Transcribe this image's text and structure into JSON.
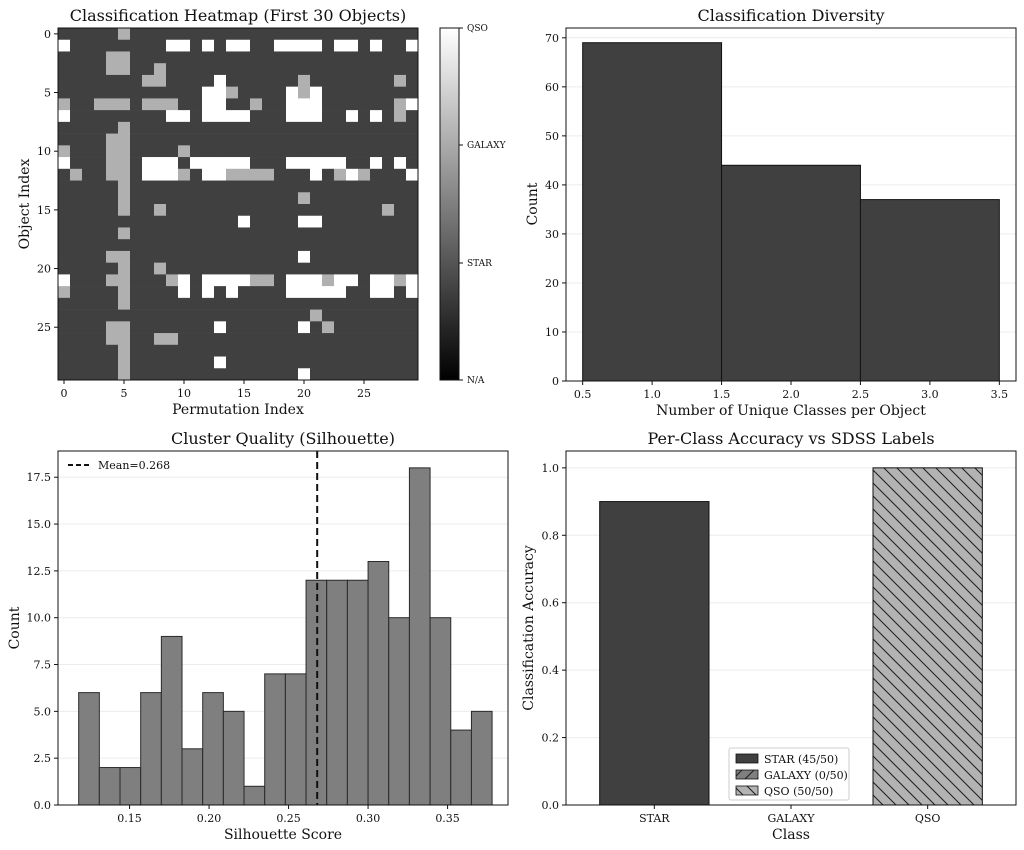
{
  "chart_data": [
    {
      "type": "heatmap",
      "title": "Classification Heatmap (First 30 Objects)",
      "xlabel": "Permutation Index",
      "ylabel": "Object Index",
      "rows": 30,
      "cols": 30,
      "x_ticks": [
        0,
        5,
        10,
        15,
        20,
        25
      ],
      "y_ticks": [
        0,
        5,
        10,
        15,
        20,
        25
      ],
      "colorbar_labels": [
        "QSO",
        "GALAXY",
        "STAR",
        "N/A"
      ],
      "classes": [
        "N/A",
        "STAR",
        "GALAXY",
        "QSO"
      ],
      "default_class": "STAR",
      "galaxy_cells": [
        [
          0,
          5
        ],
        [
          2,
          4
        ],
        [
          2,
          5
        ],
        [
          3,
          4
        ],
        [
          3,
          5
        ],
        [
          3,
          8
        ],
        [
          4,
          7
        ],
        [
          4,
          8
        ],
        [
          4,
          20
        ],
        [
          4,
          28
        ],
        [
          5,
          14
        ],
        [
          5,
          20
        ],
        [
          6,
          0
        ],
        [
          6,
          3
        ],
        [
          6,
          4
        ],
        [
          6,
          5
        ],
        [
          6,
          7
        ],
        [
          6,
          8
        ],
        [
          6,
          9
        ],
        [
          6,
          16
        ],
        [
          6,
          28
        ],
        [
          7,
          28
        ],
        [
          8,
          5
        ],
        [
          9,
          4
        ],
        [
          9,
          5
        ],
        [
          10,
          0
        ],
        [
          10,
          4
        ],
        [
          10,
          5
        ],
        [
          10,
          10
        ],
        [
          11,
          4
        ],
        [
          11,
          5
        ],
        [
          11,
          20
        ],
        [
          12,
          1
        ],
        [
          12,
          4
        ],
        [
          12,
          5
        ],
        [
          12,
          10
        ],
        [
          12,
          14
        ],
        [
          12,
          15
        ],
        [
          12,
          16
        ],
        [
          12,
          17
        ],
        [
          12,
          23
        ],
        [
          12,
          25
        ],
        [
          13,
          5
        ],
        [
          14,
          5
        ],
        [
          14,
          20
        ],
        [
          15,
          5
        ],
        [
          15,
          8
        ],
        [
          15,
          27
        ],
        [
          17,
          5
        ],
        [
          19,
          4
        ],
        [
          19,
          5
        ],
        [
          20,
          5
        ],
        [
          20,
          8
        ],
        [
          21,
          4
        ],
        [
          21,
          5
        ],
        [
          21,
          9
        ],
        [
          21,
          16
        ],
        [
          21,
          17
        ],
        [
          21,
          22
        ],
        [
          21,
          28
        ],
        [
          22,
          0
        ],
        [
          22,
          5
        ],
        [
          22,
          20
        ],
        [
          23,
          5
        ],
        [
          24,
          21
        ],
        [
          25,
          4
        ],
        [
          25,
          5
        ],
        [
          25,
          22
        ],
        [
          26,
          4
        ],
        [
          26,
          5
        ],
        [
          26,
          8
        ],
        [
          26,
          9
        ],
        [
          27,
          5
        ],
        [
          28,
          5
        ],
        [
          29,
          5
        ]
      ],
      "qso_cells": [
        [
          1,
          0
        ],
        [
          1,
          9
        ],
        [
          1,
          10
        ],
        [
          1,
          12
        ],
        [
          1,
          14
        ],
        [
          1,
          15
        ],
        [
          1,
          18
        ],
        [
          1,
          19
        ],
        [
          1,
          20
        ],
        [
          1,
          21
        ],
        [
          1,
          23
        ],
        [
          1,
          24
        ],
        [
          1,
          26
        ],
        [
          1,
          29
        ],
        [
          4,
          13
        ],
        [
          5,
          12
        ],
        [
          5,
          13
        ],
        [
          5,
          19
        ],
        [
          5,
          21
        ],
        [
          6,
          12
        ],
        [
          6,
          13
        ],
        [
          6,
          19
        ],
        [
          6,
          20
        ],
        [
          6,
          21
        ],
        [
          6,
          29
        ],
        [
          7,
          0
        ],
        [
          7,
          9
        ],
        [
          7,
          10
        ],
        [
          7,
          12
        ],
        [
          7,
          13
        ],
        [
          7,
          14
        ],
        [
          7,
          15
        ],
        [
          7,
          19
        ],
        [
          7,
          20
        ],
        [
          7,
          21
        ],
        [
          7,
          24
        ],
        [
          7,
          26
        ],
        [
          11,
          0
        ],
        [
          11,
          7
        ],
        [
          11,
          8
        ],
        [
          11,
          9
        ],
        [
          11,
          11
        ],
        [
          11,
          12
        ],
        [
          11,
          13
        ],
        [
          11,
          14
        ],
        [
          11,
          15
        ],
        [
          11,
          19
        ],
        [
          11,
          20
        ],
        [
          11,
          21
        ],
        [
          11,
          22
        ],
        [
          11,
          23
        ],
        [
          11,
          26
        ],
        [
          11,
          28
        ],
        [
          12,
          7
        ],
        [
          12,
          8
        ],
        [
          12,
          9
        ],
        [
          12,
          12
        ],
        [
          12,
          13
        ],
        [
          12,
          21
        ],
        [
          12,
          24
        ],
        [
          12,
          29
        ],
        [
          16,
          15
        ],
        [
          16,
          20
        ],
        [
          16,
          21
        ],
        [
          19,
          20
        ],
        [
          21,
          0
        ],
        [
          21,
          10
        ],
        [
          21,
          12
        ],
        [
          21,
          13
        ],
        [
          21,
          14
        ],
        [
          21,
          15
        ],
        [
          21,
          19
        ],
        [
          21,
          20
        ],
        [
          21,
          21
        ],
        [
          21,
          23
        ],
        [
          21,
          24
        ],
        [
          21,
          26
        ],
        [
          21,
          27
        ],
        [
          21,
          29
        ],
        [
          22,
          10
        ],
        [
          22,
          12
        ],
        [
          22,
          14
        ],
        [
          22,
          19
        ],
        [
          22,
          20
        ],
        [
          22,
          21
        ],
        [
          22,
          22
        ],
        [
          22,
          23
        ],
        [
          22,
          26
        ],
        [
          22,
          27
        ],
        [
          22,
          29
        ],
        [
          25,
          13
        ],
        [
          25,
          20
        ],
        [
          28,
          13
        ],
        [
          29,
          20
        ]
      ]
    },
    {
      "type": "bar",
      "title": "Classification Diversity",
      "xlabel": "Number of Unique Classes per Object",
      "ylabel": "Count",
      "categories": [
        1,
        2,
        3
      ],
      "values": [
        69,
        44,
        37
      ],
      "xlim": [
        0.38,
        3.62
      ],
      "ylim": [
        0,
        72
      ],
      "x_ticks": [
        "0.5",
        "1.0",
        "1.5",
        "2.0",
        "2.5",
        "3.0",
        "3.5"
      ],
      "y_ticks": [
        "0",
        "10",
        "20",
        "30",
        "40",
        "50",
        "60",
        "70"
      ],
      "color": "#404040"
    },
    {
      "type": "bar",
      "title": "Cluster Quality (Silhouette)",
      "xlabel": "Silhouette Score",
      "ylabel": "Count",
      "bin_start": 0.118,
      "bin_width": 0.013,
      "values": [
        6,
        2,
        2,
        6,
        9,
        3,
        6,
        5,
        1,
        7,
        7,
        12,
        12,
        12,
        13,
        10,
        18,
        10,
        4,
        5
      ],
      "mean": 0.268,
      "legend": "Mean=0.268",
      "legend_position": "top-left",
      "xlim": [
        0.105,
        0.388
      ],
      "ylim": [
        0,
        18.9
      ],
      "x_ticks": [
        "0.15",
        "0.20",
        "0.25",
        "0.30",
        "0.35"
      ],
      "y_ticks": [
        "0.0",
        "2.5",
        "5.0",
        "7.5",
        "10.0",
        "12.5",
        "15.0",
        "17.5"
      ],
      "color": "#7f7f7f"
    },
    {
      "type": "bar",
      "title": "Per-Class Accuracy vs SDSS Labels",
      "xlabel": "Class",
      "ylabel": "Classification Accuracy",
      "categories": [
        "STAR",
        "GALAXY",
        "QSO"
      ],
      "values": [
        0.9,
        0.0,
        1.0
      ],
      "legend": [
        "STAR (45/50)",
        "GALAXY (0/50)",
        "QSO (50/50)"
      ],
      "legend_position": "lower-center",
      "ylim": [
        0,
        1.05
      ],
      "y_ticks": [
        "0.0",
        "0.2",
        "0.4",
        "0.6",
        "0.8",
        "1.0"
      ],
      "colors": [
        "#404040",
        "#7f7f7f",
        "#b3b3b3"
      ]
    }
  ]
}
